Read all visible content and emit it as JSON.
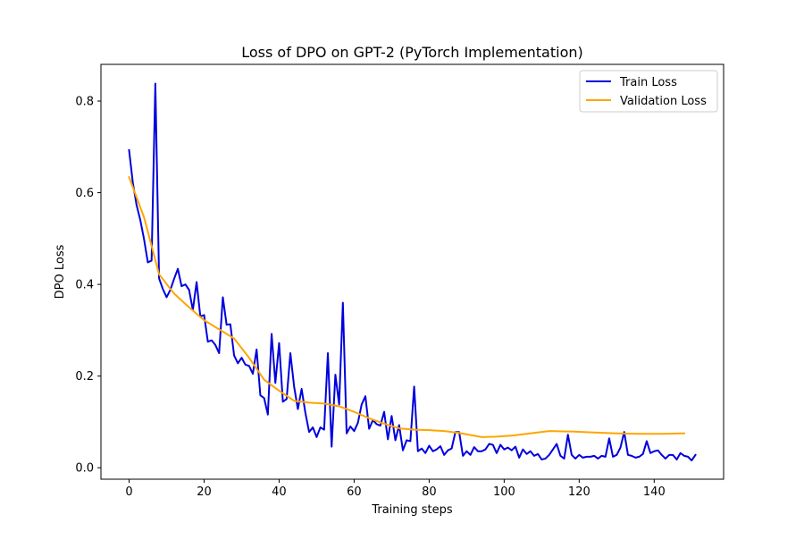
{
  "chart_data": {
    "type": "line",
    "title": "Loss of DPO on GPT-2 (PyTorch Implementation)",
    "xlabel": "Training steps",
    "ylabel": "DPO Loss",
    "xlim": [
      -7.5,
      158.5
    ],
    "ylim": [
      -0.025,
      0.88
    ],
    "xticks": [
      0,
      20,
      40,
      60,
      80,
      100,
      120,
      140
    ],
    "yticks": [
      0.0,
      0.2,
      0.4,
      0.6,
      0.8
    ],
    "xtick_labels": [
      "0",
      "20",
      "40",
      "60",
      "80",
      "100",
      "120",
      "140"
    ],
    "ytick_labels": [
      "0.0",
      "0.2",
      "0.4",
      "0.6",
      "0.8"
    ],
    "grid": false,
    "legend": "top-right",
    "series": [
      {
        "name": "Train Loss",
        "color": "#0000dd",
        "x": [
          0,
          1,
          2,
          3,
          4,
          5,
          6,
          7,
          8,
          9,
          10,
          11,
          12,
          13,
          14,
          15,
          16,
          17,
          18,
          19,
          20,
          21,
          22,
          23,
          24,
          25,
          26,
          27,
          28,
          29,
          30,
          31,
          32,
          33,
          34,
          35,
          36,
          37,
          38,
          39,
          40,
          41,
          42,
          43,
          44,
          45,
          46,
          47,
          48,
          49,
          50,
          51,
          52,
          53,
          54,
          55,
          56,
          57,
          58,
          59,
          60,
          61,
          62,
          63,
          64,
          65,
          66,
          67,
          68,
          69,
          70,
          71,
          72,
          73,
          74,
          75,
          76,
          77,
          78,
          79,
          80,
          81,
          82,
          83,
          84,
          85,
          86,
          87,
          88,
          89,
          90,
          91,
          92,
          93,
          94,
          95,
          96,
          97,
          98,
          99,
          100,
          101,
          102,
          103,
          104,
          105,
          106,
          107,
          108,
          109,
          110,
          111,
          112,
          113,
          114,
          115,
          116,
          117,
          118,
          119,
          120,
          121,
          122,
          123,
          124,
          125,
          126,
          127,
          128,
          129,
          130,
          131,
          132,
          133,
          134,
          135,
          136,
          137,
          138,
          139,
          140,
          141,
          142,
          143,
          144,
          145,
          146,
          147,
          148,
          149,
          150,
          151
        ],
        "y": [
          0.693,
          0.622,
          0.573,
          0.54,
          0.498,
          0.448,
          0.452,
          0.838,
          0.413,
          0.39,
          0.372,
          0.388,
          0.412,
          0.434,
          0.396,
          0.4,
          0.388,
          0.344,
          0.405,
          0.33,
          0.333,
          0.275,
          0.278,
          0.268,
          0.25,
          0.372,
          0.312,
          0.313,
          0.245,
          0.228,
          0.24,
          0.225,
          0.222,
          0.205,
          0.258,
          0.158,
          0.152,
          0.116,
          0.292,
          0.185,
          0.272,
          0.144,
          0.15,
          0.25,
          0.177,
          0.128,
          0.172,
          0.12,
          0.078,
          0.088,
          0.067,
          0.088,
          0.083,
          0.25,
          0.046,
          0.203,
          0.138,
          0.36,
          0.075,
          0.09,
          0.08,
          0.098,
          0.138,
          0.156,
          0.085,
          0.104,
          0.095,
          0.092,
          0.122,
          0.062,
          0.113,
          0.06,
          0.093,
          0.038,
          0.06,
          0.058,
          0.177,
          0.036,
          0.042,
          0.032,
          0.048,
          0.036,
          0.04,
          0.047,
          0.028,
          0.038,
          0.042,
          0.078,
          0.078,
          0.026,
          0.036,
          0.028,
          0.045,
          0.036,
          0.036,
          0.04,
          0.052,
          0.05,
          0.032,
          0.05,
          0.04,
          0.044,
          0.038,
          0.046,
          0.022,
          0.04,
          0.03,
          0.036,
          0.026,
          0.03,
          0.018,
          0.02,
          0.028,
          0.04,
          0.052,
          0.026,
          0.02,
          0.072,
          0.028,
          0.02,
          0.028,
          0.022,
          0.024,
          0.024,
          0.026,
          0.02,
          0.026,
          0.024,
          0.064,
          0.024,
          0.028,
          0.044,
          0.078,
          0.028,
          0.026,
          0.022,
          0.024,
          0.03,
          0.058,
          0.032,
          0.036,
          0.038,
          0.028,
          0.02,
          0.028,
          0.028,
          0.018,
          0.032,
          0.026,
          0.024,
          0.016,
          0.028
        ]
      },
      {
        "name": "Validation Loss",
        "color": "#ffa500",
        "x": [
          0,
          4,
          8,
          12,
          16,
          20,
          24,
          28,
          32,
          36,
          40,
          44,
          48,
          52,
          56,
          60,
          64,
          68,
          72,
          76,
          80,
          84,
          88,
          94,
          98,
          102,
          106,
          112,
          118,
          124,
          130,
          136,
          142,
          148
        ],
        "y": [
          0.634,
          0.546,
          0.422,
          0.38,
          0.35,
          0.322,
          0.302,
          0.282,
          0.24,
          0.192,
          0.168,
          0.146,
          0.142,
          0.14,
          0.134,
          0.122,
          0.108,
          0.096,
          0.086,
          0.083,
          0.082,
          0.08,
          0.076,
          0.067,
          0.068,
          0.07,
          0.074,
          0.08,
          0.079,
          0.077,
          0.075,
          0.074,
          0.074,
          0.075
        ]
      }
    ]
  }
}
